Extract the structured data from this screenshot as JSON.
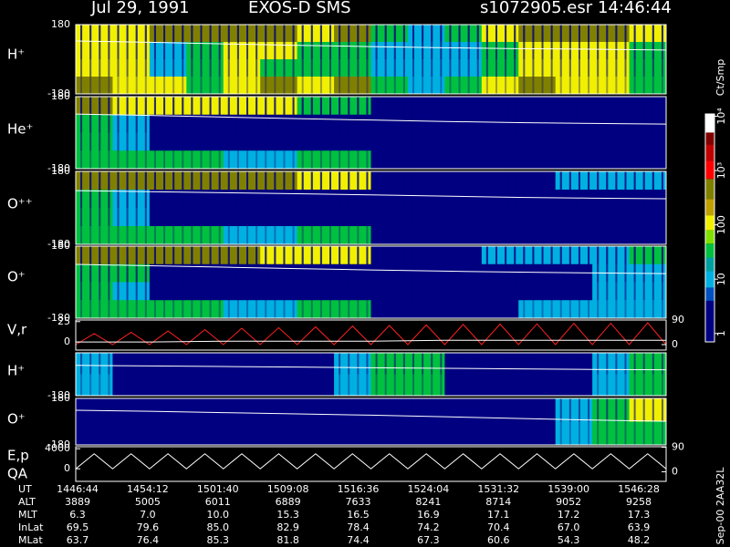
{
  "header": {
    "date": "Jul 29, 1991",
    "instrument": "EXOS-D SMS",
    "file": "s1072905.esr",
    "time": "14:46:44"
  },
  "chart_data": [
    {
      "type": "heatmap",
      "label": "H⁺",
      "ylim": [
        -180,
        180
      ],
      "yticks": [
        180,
        -180
      ],
      "z": [
        [
          100,
          100,
          300,
          300,
          300,
          300,
          100,
          300,
          30,
          10,
          30,
          100,
          300,
          300,
          300,
          100
        ],
        [
          100,
          100,
          10,
          30,
          100,
          100,
          30,
          30,
          10,
          10,
          10,
          30,
          100,
          100,
          100,
          30
        ],
        [
          100,
          100,
          10,
          30,
          100,
          30,
          30,
          30,
          10,
          10,
          10,
          30,
          100,
          100,
          100,
          30
        ],
        [
          300,
          100,
          100,
          30,
          100,
          300,
          100,
          300,
          30,
          10,
          30,
          100,
          300,
          100,
          100,
          30
        ]
      ],
      "line": [
        95,
        88,
        80,
        72,
        66,
        60,
        55,
        52,
        48
      ]
    },
    {
      "type": "heatmap",
      "label": "He⁺",
      "ylim": [
        -180,
        180
      ],
      "yticks": [
        180,
        -180
      ],
      "z": [
        [
          300,
          100,
          100,
          100,
          100,
          100,
          30,
          30,
          1,
          1,
          1,
          3,
          3,
          3,
          3,
          3
        ],
        [
          30,
          10,
          1,
          1,
          1,
          1,
          1,
          3,
          1,
          1,
          1,
          3,
          3,
          3,
          3,
          3
        ],
        [
          30,
          10,
          1,
          1,
          1,
          1,
          1,
          3,
          1,
          1,
          1,
          3,
          3,
          3,
          3,
          3
        ],
        [
          30,
          30,
          30,
          30,
          10,
          10,
          30,
          30,
          1,
          1,
          1,
          3,
          3,
          3,
          3,
          3
        ]
      ],
      "line": [
        93,
        86,
        78,
        70,
        63,
        56,
        50,
        46,
        43
      ]
    },
    {
      "type": "heatmap",
      "label": "O⁺⁺",
      "ylim": [
        -180,
        180
      ],
      "yticks": [
        180,
        -180
      ],
      "z": [
        [
          300,
          300,
          300,
          300,
          300,
          300,
          100,
          100,
          3,
          3,
          3,
          3,
          3,
          10,
          10,
          10
        ],
        [
          30,
          10,
          1,
          1,
          1,
          1,
          1,
          3,
          1,
          1,
          1,
          3,
          3,
          3,
          3,
          3
        ],
        [
          30,
          10,
          1,
          1,
          1,
          1,
          1,
          3,
          1,
          1,
          1,
          3,
          3,
          3,
          3,
          3
        ],
        [
          30,
          30,
          30,
          30,
          10,
          10,
          30,
          30,
          1,
          1,
          1,
          3,
          3,
          3,
          3,
          3
        ]
      ],
      "line": [
        85,
        80,
        75,
        70,
        64,
        58,
        52,
        48,
        45
      ]
    },
    {
      "type": "heatmap",
      "label": "O⁺",
      "ylim": [
        -180,
        180
      ],
      "yticks": [
        180,
        -180
      ],
      "z": [
        [
          300,
          300,
          300,
          300,
          300,
          100,
          100,
          100,
          3,
          3,
          3,
          10,
          10,
          10,
          10,
          30
        ],
        [
          30,
          30,
          1,
          1,
          1,
          1,
          1,
          3,
          1,
          1,
          1,
          3,
          3,
          3,
          10,
          10
        ],
        [
          30,
          10,
          1,
          1,
          1,
          1,
          1,
          3,
          1,
          1,
          1,
          3,
          3,
          3,
          10,
          10
        ],
        [
          30,
          30,
          30,
          30,
          10,
          10,
          30,
          30,
          1,
          1,
          1,
          3,
          10,
          10,
          10,
          10
        ]
      ],
      "line": [
        89,
        82,
        75,
        68,
        61,
        55,
        50,
        46,
        43
      ]
    },
    {
      "type": "line",
      "label": "V,r",
      "ylim": [
        -10,
        27
      ],
      "yticks": [
        25,
        0
      ],
      "y2lim": [
        -20,
        90
      ],
      "y2ticks": [
        90,
        0
      ],
      "series": [
        {
          "color": "#ff2020",
          "axis": "y2",
          "values": [
            0,
            40,
            0,
            45,
            0,
            50,
            0,
            55,
            0,
            60,
            0,
            62,
            0,
            65,
            0,
            68,
            0,
            70,
            0,
            72,
            0,
            74,
            0,
            75,
            0,
            76,
            0,
            78,
            0,
            78,
            0,
            80,
            0
          ]
        },
        {
          "color": "#ffffff",
          "values": [
            0,
            0,
            1,
            1,
            1,
            2,
            2,
            2,
            2
          ]
        }
      ]
    },
    {
      "type": "heatmap",
      "label": "H⁺",
      "ylim": [
        -180,
        180
      ],
      "yticks": [
        -180
      ],
      "z": [
        [
          10,
          3,
          1,
          3,
          1,
          1,
          3,
          10,
          30,
          30,
          3,
          3,
          3,
          3,
          10,
          30
        ],
        [
          10,
          3,
          1,
          1,
          1,
          1,
          3,
          10,
          30,
          30,
          3,
          3,
          3,
          3,
          10,
          30
        ]
      ],
      "line": [
        75,
        70,
        65,
        60,
        55,
        50,
        45,
        40,
        37
      ]
    },
    {
      "type": "heatmap",
      "label": "O⁺",
      "ylim": [
        -180,
        180
      ],
      "yticks": [
        180,
        -180
      ],
      "z": [
        [
          3,
          1,
          1,
          1,
          1,
          1,
          1,
          3,
          3,
          3,
          3,
          3,
          3,
          10,
          30,
          100
        ],
        [
          1,
          1,
          1,
          1,
          1,
          1,
          1,
          1,
          1,
          1,
          1,
          1,
          1,
          10,
          30,
          30
        ]
      ],
      "line": [
        88,
        80,
        70,
        60,
        50,
        38,
        25,
        12,
        3
      ]
    },
    {
      "type": "line",
      "label": "E,p",
      "label2": "QA",
      "ylim": [
        -2500,
        4400
      ],
      "yticks": [
        4000,
        0
      ],
      "y2lim": [
        -35,
        92
      ],
      "y2ticks": [
        90,
        0
      ],
      "series": [
        {
          "color": "#ffffff",
          "values": [
            0,
            3000,
            0,
            3000,
            0,
            3000,
            0,
            3000,
            0,
            3000,
            0,
            3000,
            0,
            3000,
            0,
            3000,
            0,
            3000,
            0,
            3000,
            0,
            3000,
            0,
            3000,
            0,
            3000,
            0,
            3000,
            0,
            3000,
            0,
            3000,
            0
          ]
        }
      ]
    }
  ],
  "colorbar": {
    "label": "Ct/Smp",
    "lim": [
      0.7,
      11000
    ],
    "ticks": [
      1,
      10,
      100,
      {
        "value": 1000,
        "label": "10³"
      },
      {
        "value": 10000,
        "label": "10⁴"
      }
    ],
    "colors": [
      {
        "from": 0.7,
        "color": "#000080"
      },
      {
        "from": 4,
        "color": "#0050c0"
      },
      {
        "from": 7,
        "color": "#00b0e0"
      },
      {
        "from": 14,
        "color": "#00a0a0"
      },
      {
        "from": 25,
        "color": "#00c040"
      },
      {
        "from": 45,
        "color": "#80e000"
      },
      {
        "from": 80,
        "color": "#f0f000"
      },
      {
        "from": 150,
        "color": "#c0a000"
      },
      {
        "from": 300,
        "color": "#808000"
      },
      {
        "from": 700,
        "color": "#ff0000"
      },
      {
        "from": 1500,
        "color": "#c00000"
      },
      {
        "from": 3000,
        "color": "#800000"
      },
      {
        "from": 5000,
        "color": "#ffffff"
      }
    ]
  },
  "table": {
    "rows": [
      {
        "label": "UT",
        "values": [
          "1446:44",
          "1454:12",
          "1501:40",
          "1509:08",
          "1516:36",
          "1524:04",
          "1531:32",
          "1539:00",
          "1546:28"
        ]
      },
      {
        "label": "ALT",
        "values": [
          "3889",
          "5005",
          "6011",
          "6889",
          "7633",
          "8241",
          "8714",
          "9052",
          "9258"
        ]
      },
      {
        "label": "MLT",
        "values": [
          "6.3",
          "7.0",
          "10.0",
          "15.3",
          "16.5",
          "16.9",
          "17.1",
          "17.2",
          "17.3"
        ]
      },
      {
        "label": "InLat",
        "values": [
          "69.5",
          "79.6",
          "85.0",
          "82.9",
          "78.4",
          "74.2",
          "70.4",
          "67.0",
          "63.9"
        ]
      },
      {
        "label": "MLat",
        "values": [
          "63.7",
          "76.4",
          "85.3",
          "81.8",
          "74.4",
          "67.3",
          "60.6",
          "54.3",
          "48.2"
        ]
      }
    ]
  },
  "footer": "Sep-00 2AA32L"
}
